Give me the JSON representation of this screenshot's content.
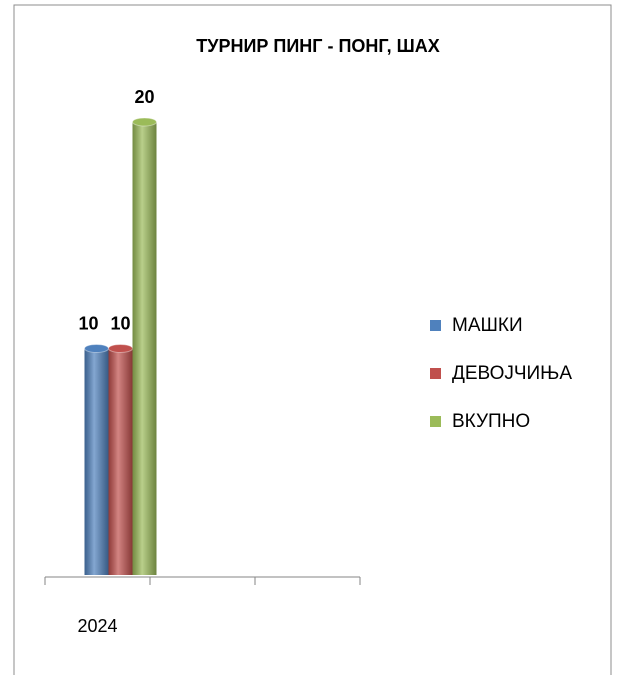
{
  "chart_data": {
    "type": "bar",
    "title": "ТУРНИР ПИНГ - ПОНГ, ШАХ",
    "categories": [
      "2024",
      null,
      null
    ],
    "series": [
      {
        "name": "МАШКИ",
        "color": "#4f81bd",
        "values": [
          10,
          null,
          null
        ]
      },
      {
        "name": "ДЕВОЈЧИЊА",
        "color": "#c0504d",
        "values": [
          10,
          null,
          null
        ]
      },
      {
        "name": "ВКУПНО",
        "color": "#9bbb59",
        "values": [
          20,
          null,
          null
        ]
      }
    ],
    "legend": "right"
  }
}
